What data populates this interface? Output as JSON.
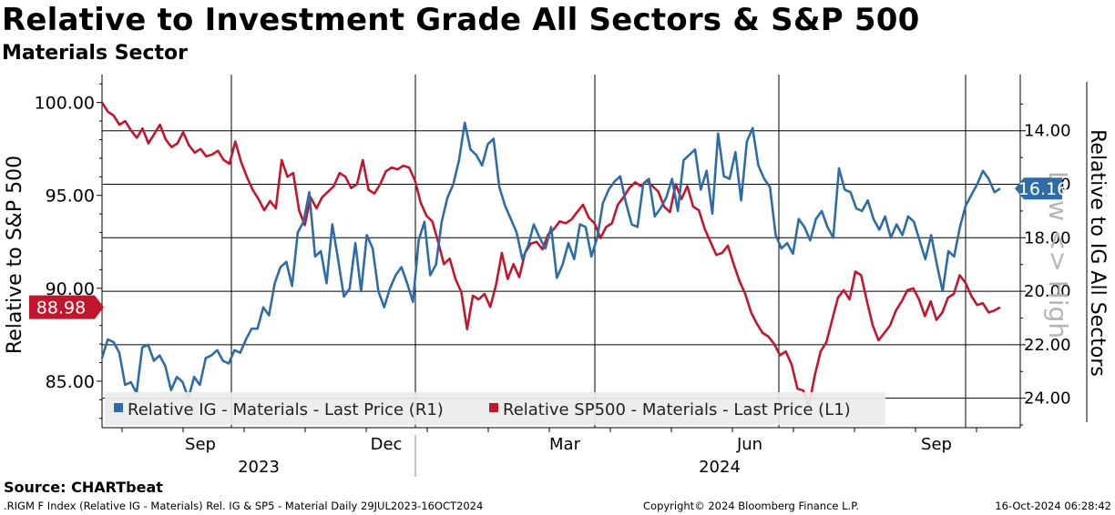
{
  "page": {
    "title": "Relative to Investment Grade All Sectors & S&P 500",
    "subtitle": "Materials Sector",
    "source": "Source: CHARTbeat",
    "footer_left": ".RIGM F Index (Relative IG - Materials) Rel. IG & SP5 - Material  Daily 29JUL2023-16OCT2024",
    "footer_center": "Copyright© 2024 Bloomberg Finance L.P.",
    "footer_right": "16-Oct-2024 06:28:42"
  },
  "colors": {
    "ig": "#2e6ca8",
    "sp500": "#c0172f",
    "grid": "#000000",
    "legend_bg": "#ececec"
  },
  "chart_data": {
    "type": "line",
    "date_range": [
      "2023-07-29",
      "2024-10-16"
    ],
    "x_tick_labels": [
      "Sep",
      "Dec",
      "Mar",
      "Jun",
      "Sep"
    ],
    "x_year_labels": [
      "2023",
      "2024"
    ],
    "left_axis": {
      "label": "Relative to S&P 500",
      "range": [
        82.5,
        101.5
      ],
      "ticks": [
        85,
        90,
        95,
        100
      ],
      "tick_labels": [
        "85.00",
        "90.00",
        "95.00",
        "100.00"
      ]
    },
    "right_axis": {
      "label": "Relative to IG All Sectors",
      "inverted": true,
      "annotation": "Low <> High",
      "range": [
        11.9,
        25.1
      ],
      "ticks": [
        14,
        16,
        18,
        20,
        22,
        24
      ],
      "tick_labels": [
        "14.00",
        "16.00",
        "18.00",
        "20.00",
        "22.00",
        "24.00"
      ]
    },
    "last_values": {
      "ig": "16.16",
      "sp500": "88.98"
    },
    "legend": [
      "Relative IG - Materials - Last Price (R1)",
      "Relative SP500 - Materials - Last Price (L1)"
    ],
    "series": [
      {
        "name": "Relative SP500 - Materials - Last Price (L1)",
        "axis": "left",
        "values": [
          100.0,
          99.5,
          99.3,
          98.8,
          99.0,
          98.5,
          98.1,
          98.6,
          97.8,
          98.3,
          98.8,
          98.0,
          97.6,
          97.8,
          98.4,
          97.7,
          97.3,
          97.5,
          97.1,
          97.2,
          97.4,
          96.9,
          96.7,
          97.9,
          96.8,
          96.0,
          95.3,
          94.8,
          94.2,
          94.7,
          94.3,
          96.9,
          96.0,
          96.2,
          94.2,
          93.4,
          94.9,
          94.3,
          94.9,
          95.2,
          95.5,
          96.2,
          96.0,
          95.4,
          95.6,
          96.9,
          95.3,
          95.1,
          95.6,
          96.3,
          96.5,
          96.4,
          96.6,
          96.5,
          95.8,
          94.6,
          93.9,
          93.6,
          92.5,
          91.3,
          91.6,
          90.5,
          89.8,
          87.8,
          89.6,
          89.4,
          89.7,
          89.0,
          90.2,
          91.9,
          90.5,
          91.3,
          90.6,
          91.9,
          92.4,
          92.5,
          92.1,
          92.9,
          93.2,
          93.6,
          93.5,
          93.7,
          94.1,
          94.5,
          93.8,
          93.5,
          92.7,
          93.3,
          93.5,
          94.5,
          94.9,
          95.4,
          95.7,
          95.5,
          95.8,
          95.5,
          95.2,
          94.4,
          94.1,
          95.6,
          94.8,
          95.5,
          94.4,
          94.2,
          93.2,
          92.5,
          91.8,
          91.9,
          92.3,
          91.3,
          90.4,
          89.7,
          88.7,
          88.1,
          87.6,
          87.4,
          87.0,
          86.4,
          86.6,
          85.9,
          84.6,
          84.5,
          83.7,
          85.3,
          86.6,
          87.1,
          88.3,
          89.5,
          89.9,
          89.4,
          90.9,
          90.7,
          89.3,
          88.0,
          87.2,
          87.6,
          88.0,
          88.8,
          89.3,
          89.9,
          90.0,
          89.4,
          88.5,
          89.3,
          88.3,
          88.7,
          89.5,
          89.7,
          90.7,
          90.3,
          89.6,
          89.1,
          89.2,
          88.7,
          88.8,
          88.98
        ]
      },
      {
        "name": "Relative IG - Materials - Last Price (R1)",
        "axis": "right",
        "values": [
          22.5,
          21.8,
          21.9,
          22.3,
          23.5,
          23.4,
          23.8,
          22.1,
          22.0,
          22.6,
          22.4,
          22.8,
          23.7,
          23.2,
          23.4,
          24.0,
          23.2,
          23.5,
          22.5,
          22.4,
          22.2,
          22.6,
          22.7,
          22.2,
          22.3,
          21.8,
          21.4,
          21.4,
          20.6,
          20.9,
          19.7,
          19.1,
          18.9,
          19.8,
          17.8,
          17.4,
          16.3,
          18.7,
          18.5,
          19.7,
          17.5,
          18.8,
          20.2,
          19.9,
          18.2,
          20.0,
          17.9,
          18.4,
          20.0,
          20.6,
          19.9,
          19.4,
          19.1,
          19.7,
          20.4,
          18.1,
          17.4,
          19.4,
          19.0,
          17.4,
          16.5,
          16.0,
          15.1,
          13.7,
          14.7,
          14.9,
          15.3,
          14.5,
          14.3,
          16.1,
          16.8,
          17.3,
          17.8,
          18.8,
          18.3,
          17.5,
          18.0,
          18.4,
          17.6,
          19.5,
          19.0,
          18.2,
          18.8,
          17.5,
          17.6,
          18.7,
          18.0,
          16.7,
          16.2,
          15.9,
          15.7,
          16.7,
          17.5,
          17.6,
          16.0,
          15.8,
          17.2,
          16.9,
          16.5,
          15.8,
          17.0,
          15.1,
          14.9,
          14.7,
          16.2,
          15.5,
          17.1,
          14.1,
          15.7,
          15.8,
          14.8,
          16.6,
          14.4,
          13.9,
          15.3,
          15.8,
          16.1,
          17.9,
          18.4,
          18.2,
          18.6,
          17.3,
          17.6,
          18.1,
          17.3,
          17.0,
          17.6,
          18.0,
          15.4,
          16.2,
          16.3,
          16.9,
          17.0,
          16.6,
          17.3,
          17.7,
          17.2,
          18.0,
          17.5,
          17.9,
          17.2,
          17.4,
          18.1,
          18.8,
          17.9,
          19.0,
          20.0,
          18.5,
          18.7,
          17.6,
          16.8,
          16.4,
          16.0,
          15.5,
          15.8,
          16.3,
          16.16
        ]
      }
    ]
  }
}
